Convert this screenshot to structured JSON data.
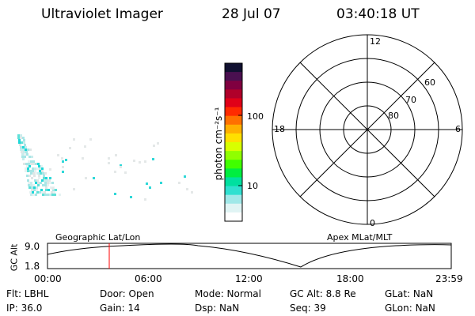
{
  "header": {
    "instrument": "Ultraviolet Imager",
    "date": "28 Jul 07",
    "time": "03:40:18 UT"
  },
  "colorbar": {
    "label": "photon cm⁻²s⁻¹",
    "ticks": [
      "100",
      "10"
    ],
    "colors": [
      "#101030",
      "#4a1050",
      "#800040",
      "#b0002a",
      "#e00018",
      "#ff2a00",
      "#ff7000",
      "#ffb000",
      "#ffe000",
      "#d8ff00",
      "#90ff00",
      "#40ff00",
      "#00ee40",
      "#00e0a0",
      "#30e0d0",
      "#a0e8e8",
      "#e0f4f4",
      "#ffffff"
    ]
  },
  "polar": {
    "clock_labels": [
      "12",
      "18",
      "6",
      "0"
    ],
    "lat_labels": [
      "60",
      "70",
      "80"
    ]
  },
  "timeline": {
    "y_axis_label": "GC Alt",
    "y_ticks": [
      "9.0",
      "1.8"
    ],
    "left_title": "Geographic Lat/Lon",
    "right_title": "Apex  MLat/MLT",
    "x_ticks": [
      "00:00",
      "06:00",
      "12:00",
      "18:00",
      "23:59"
    ],
    "marker_color": "#ff0000"
  },
  "status": {
    "flt": "Flt: LBHL",
    "ip": "IP: 36.0",
    "door": "Door: Open",
    "gain": "Gain: 14",
    "mode": "Mode: Normal",
    "dsp": "Dsp:      NaN",
    "gcalt": "GC Alt: 8.8 Re",
    "seq": "Seq: 39",
    "glat": "GLat:      NaN",
    "glon": "GLon:     NaN"
  }
}
